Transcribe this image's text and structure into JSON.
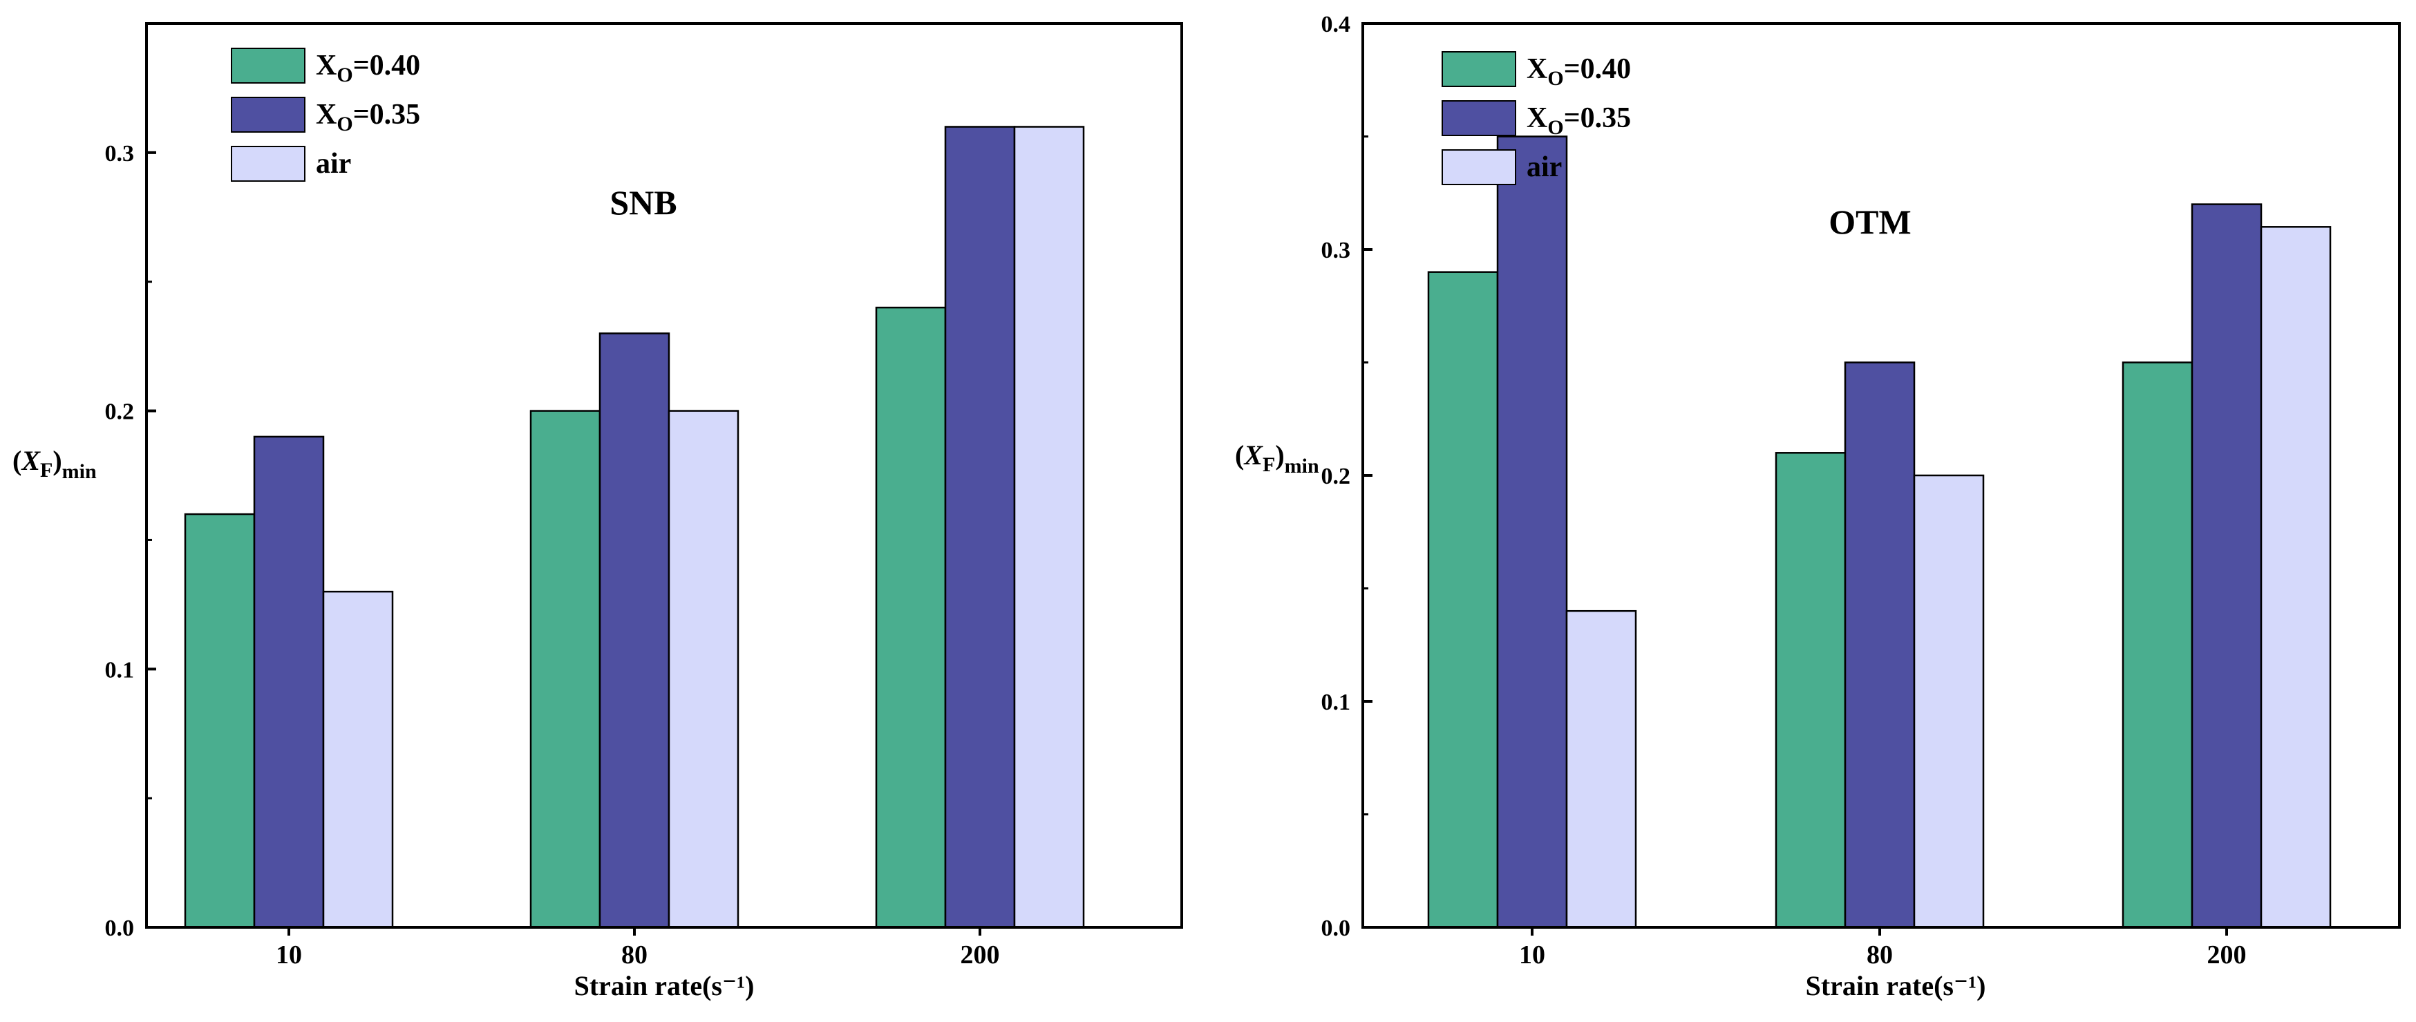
{
  "colors": {
    "xo040": "#4aae8f",
    "xo035": "#4f50a1",
    "air": "#d5d9fb"
  },
  "chart_data": [
    {
      "type": "bar",
      "title": "SNB",
      "xlabel": "Strain rate(s⁻¹)",
      "ylabel": {
        "main": "(X",
        "sub": "F",
        "close": ")",
        "tail": "min"
      },
      "categories": [
        "10",
        "80",
        "200"
      ],
      "ylim": [
        0,
        0.35
      ],
      "yticks": [
        0.0,
        0.1,
        0.2,
        0.3
      ],
      "ytick_labels": [
        "0.0",
        "0.1",
        "0.2",
        "0.3"
      ],
      "minor_ticks": [
        0.05,
        0.15,
        0.25
      ],
      "legend_position": "top-left",
      "series": [
        {
          "name": "X_O=0.40",
          "label_main": "X",
          "label_sub": "O",
          "label_tail": "=0.40",
          "color_key": "xo040",
          "values": [
            0.16,
            0.2,
            0.24
          ]
        },
        {
          "name": "X_O=0.35",
          "label_main": "X",
          "label_sub": "O",
          "label_tail": "=0.35",
          "color_key": "xo035",
          "values": [
            0.19,
            0.23,
            0.31
          ]
        },
        {
          "name": "air",
          "label_main": "air",
          "label_sub": "",
          "label_tail": "",
          "color_key": "air",
          "values": [
            0.13,
            0.2,
            0.31
          ]
        }
      ]
    },
    {
      "type": "bar",
      "title": "OTM",
      "xlabel": "Strain rate(s⁻¹)",
      "ylabel": {
        "main": "(X",
        "sub": "F",
        "close": ")",
        "tail": "min"
      },
      "categories": [
        "10",
        "80",
        "200"
      ],
      "ylim": [
        0,
        0.4
      ],
      "yticks": [
        0.0,
        0.1,
        0.2,
        0.3,
        0.4
      ],
      "ytick_labels": [
        "0.0",
        "0.1",
        "0.2",
        "0.3",
        "0.4"
      ],
      "minor_ticks": [
        0.05,
        0.15,
        0.25,
        0.35
      ],
      "legend_position": "top-left",
      "series": [
        {
          "name": "X_O=0.40",
          "label_main": "X",
          "label_sub": "O",
          "label_tail": "=0.40",
          "color_key": "xo040",
          "values": [
            0.29,
            0.21,
            0.25
          ]
        },
        {
          "name": "X_O=0.35",
          "label_main": "X",
          "label_sub": "O",
          "label_tail": "=0.35",
          "color_key": "xo035",
          "values": [
            0.35,
            0.25,
            0.32
          ]
        },
        {
          "name": "air",
          "label_main": "air",
          "label_sub": "",
          "label_tail": "",
          "color_key": "air",
          "values": [
            0.14,
            0.2,
            0.31
          ]
        }
      ]
    }
  ]
}
